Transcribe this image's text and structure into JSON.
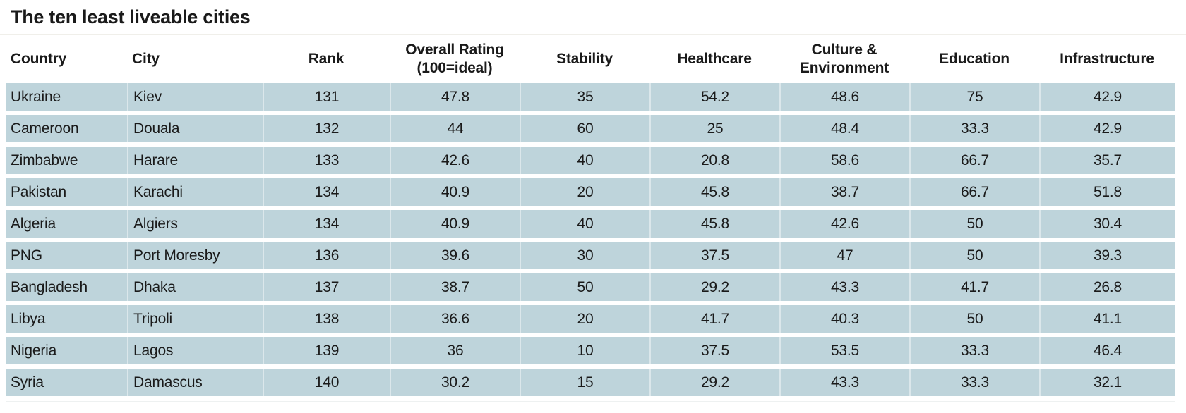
{
  "title": "The ten least liveable cities",
  "colors": {
    "row_background": "#bed4db",
    "text": "#1a1a1a",
    "page_background": "#ffffff",
    "divider": "#f0efea"
  },
  "chart_data": {
    "type": "table",
    "title": "The ten least liveable cities",
    "columns": [
      {
        "key": "country",
        "label": "Country",
        "lines": [
          "Country"
        ]
      },
      {
        "key": "city",
        "label": "City",
        "lines": [
          "City"
        ]
      },
      {
        "key": "rank",
        "label": "Rank",
        "lines": [
          "Rank"
        ]
      },
      {
        "key": "overall-rating",
        "label": "Overall Rating (100=ideal)",
        "lines": [
          "Overall Rating",
          "(100=ideal)"
        ]
      },
      {
        "key": "stability",
        "label": "Stability",
        "lines": [
          "Stability"
        ]
      },
      {
        "key": "healthcare",
        "label": "Healthcare",
        "lines": [
          "Healthcare"
        ]
      },
      {
        "key": "culture-environment",
        "label": "Culture & Environment",
        "lines": [
          "Culture &",
          "Environment"
        ]
      },
      {
        "key": "education",
        "label": "Education",
        "lines": [
          "Education"
        ]
      },
      {
        "key": "infrastructure",
        "label": "Infrastructure",
        "lines": [
          "Infrastructure"
        ]
      }
    ],
    "rows": [
      [
        "Ukraine",
        "Kiev",
        "131",
        "47.8",
        "35",
        "54.2",
        "48.6",
        "75",
        "42.9"
      ],
      [
        "Cameroon",
        "Douala",
        "132",
        "44",
        "60",
        "25",
        "48.4",
        "33.3",
        "42.9"
      ],
      [
        "Zimbabwe",
        "Harare",
        "133",
        "42.6",
        "40",
        "20.8",
        "58.6",
        "66.7",
        "35.7"
      ],
      [
        "Pakistan",
        "Karachi",
        "134",
        "40.9",
        "20",
        "45.8",
        "38.7",
        "66.7",
        "51.8"
      ],
      [
        "Algeria",
        "Algiers",
        "134",
        "40.9",
        "40",
        "45.8",
        "42.6",
        "50",
        "30.4"
      ],
      [
        "PNG",
        "Port Moresby",
        "136",
        "39.6",
        "30",
        "37.5",
        "47",
        "50",
        "39.3"
      ],
      [
        "Bangladesh",
        "Dhaka",
        "137",
        "38.7",
        "50",
        "29.2",
        "43.3",
        "41.7",
        "26.8"
      ],
      [
        "Libya",
        "Tripoli",
        "138",
        "36.6",
        "20",
        "41.7",
        "40.3",
        "50",
        "41.1"
      ],
      [
        "Nigeria",
        "Lagos",
        "139",
        "36",
        "10",
        "37.5",
        "53.5",
        "33.3",
        "46.4"
      ],
      [
        "Syria",
        "Damascus",
        "140",
        "30.2",
        "15",
        "29.2",
        "43.3",
        "33.3",
        "32.1"
      ]
    ]
  }
}
